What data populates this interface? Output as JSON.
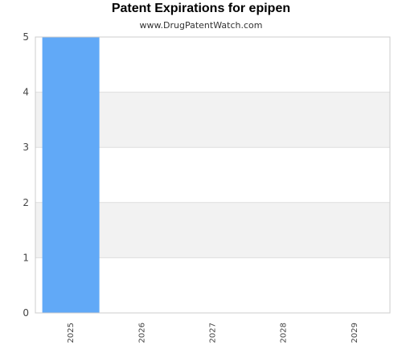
{
  "chart_data": {
    "type": "bar",
    "title": "Patent Expirations for epipen",
    "subtitle": "www.DrugPatentWatch.com",
    "categories": [
      "2025",
      "2026",
      "2027",
      "2028",
      "2029"
    ],
    "values": [
      5,
      0,
      0,
      0,
      0
    ],
    "ylim": [
      0,
      5
    ],
    "yticks": [
      0,
      1,
      2,
      3,
      4,
      5
    ],
    "xlabel": "",
    "ylabel": "",
    "grid": true,
    "bar_color": "#61a9f7",
    "band_color": "#f2f2f2",
    "grid_color": "#dddddd"
  }
}
